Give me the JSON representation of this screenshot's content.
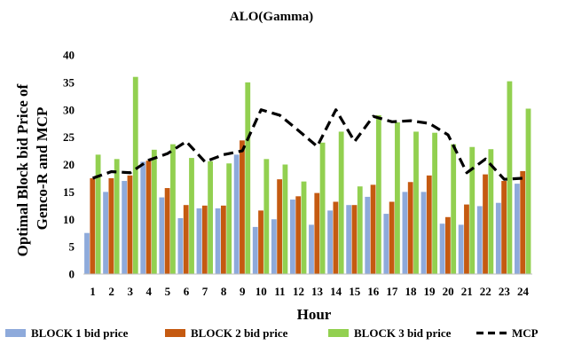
{
  "chart_data": {
    "type": "bar",
    "title": "ALO(Gamma)",
    "xlabel": "Hour",
    "ylabel_lines": [
      "Optimal Block bid Price of",
      "Genco-R and MCP"
    ],
    "ylim": [
      0,
      40
    ],
    "yticks": [
      0,
      5,
      10,
      15,
      20,
      25,
      30,
      35,
      40
    ],
    "categories": [
      "1",
      "2",
      "3",
      "4",
      "5",
      "6",
      "7",
      "8",
      "9",
      "10",
      "11",
      "12",
      "13",
      "14",
      "15",
      "16",
      "17",
      "18",
      "19",
      "20",
      "21",
      "22",
      "23",
      "24"
    ],
    "series": [
      {
        "name": "BLOCK 1 bid price",
        "type": "bar",
        "color": "#8eaadb",
        "values": [
          7.5,
          15,
          17,
          20.5,
          14,
          10.2,
          12,
          12,
          21.8,
          8.6,
          10,
          13.6,
          9,
          11.6,
          12.6,
          14.1,
          11,
          15,
          15,
          9.2,
          9,
          12.4,
          13,
          16.5
        ]
      },
      {
        "name": "BLOCK 2 bid price",
        "type": "bar",
        "color": "#c55a11",
        "values": [
          17.5,
          17.5,
          18,
          20.7,
          15.7,
          12.6,
          12.5,
          12.5,
          24.4,
          11.6,
          17.3,
          14.2,
          14.8,
          13.2,
          12.6,
          16.3,
          13.2,
          16.8,
          18,
          10.4,
          12.7,
          18.2,
          17,
          18.8
        ]
      },
      {
        "name": "BLOCK 3 bid price",
        "type": "bar",
        "color": "#92d050",
        "values": [
          21.8,
          21,
          36,
          22.7,
          23.7,
          21.2,
          20.6,
          20.2,
          35,
          21,
          20,
          16.9,
          24,
          26,
          16,
          29,
          27.7,
          26,
          25.8,
          23.7,
          23.2,
          22.8,
          35.2,
          30.2
        ]
      },
      {
        "name": "MCP",
        "type": "line",
        "color": "#000000",
        "values": [
          17.5,
          18.7,
          18.5,
          20.8,
          22,
          24.2,
          20.5,
          21.8,
          22.5,
          30,
          29,
          26.2,
          23.3,
          30,
          24.2,
          28.8,
          27.8,
          28,
          27.5,
          25.4,
          18.5,
          21,
          17.3,
          17.5
        ]
      }
    ],
    "legend_position": "bottom",
    "grid": false
  }
}
